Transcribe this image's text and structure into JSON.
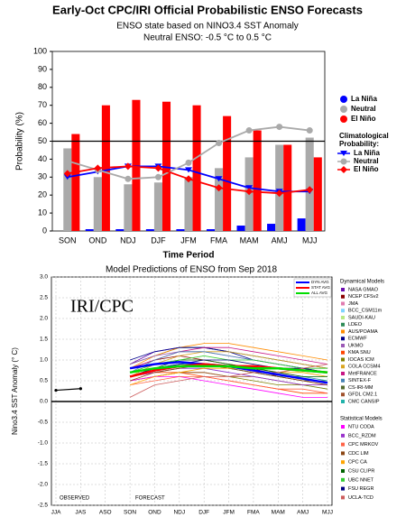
{
  "chart_data": [
    {
      "type": "bar",
      "title": "Early-Oct CPC/IRI Official Probabilistic ENSO Forecasts",
      "subtitle": [
        "ENSO state based on NINO3.4 SST Anomaly",
        "Neutral ENSO: -0.5 °C to 0.5 °C"
      ],
      "x_label": "Time Period",
      "y_label": "Probability (%)",
      "categories": [
        "SON",
        "OND",
        "NDJ",
        "DJF",
        "JFM",
        "FMA",
        "MAM",
        "AMJ",
        "MJJ"
      ],
      "ylim": [
        0,
        100
      ],
      "yticks": [
        0,
        10,
        20,
        30,
        40,
        50,
        60,
        70,
        80,
        90,
        100
      ],
      "reference_line": 50,
      "legend_title": "Climatological Probability:",
      "series": [
        {
          "name": "La Niña",
          "color": "#0000ff",
          "mark": "bar",
          "values": [
            0,
            1,
            1,
            1,
            1,
            1,
            3,
            4,
            7
          ]
        },
        {
          "name": "Neutral",
          "color": "#aaaaaa",
          "mark": "bar",
          "values": [
            46,
            30,
            26,
            27,
            30,
            35,
            41,
            48,
            52
          ]
        },
        {
          "name": "El Niño",
          "color": "#ff0000",
          "mark": "bar",
          "values": [
            54,
            70,
            73,
            72,
            70,
            64,
            56,
            48,
            41
          ]
        },
        {
          "name": "La Niña",
          "color": "#0000ff",
          "mark": "line",
          "marker": "triangle",
          "values": [
            30,
            33,
            36,
            36,
            34,
            29,
            24,
            22,
            22
          ]
        },
        {
          "name": "Neutral",
          "color": "#aaaaaa",
          "mark": "line",
          "marker": "circle",
          "values": [
            39,
            34,
            29,
            30,
            38,
            49,
            56,
            58,
            56
          ]
        },
        {
          "name": "El Niño",
          "color": "#ff0000",
          "mark": "line",
          "marker": "diamond",
          "values": [
            32,
            35,
            36,
            35,
            29,
            24,
            22,
            21,
            23
          ]
        }
      ]
    },
    {
      "type": "line",
      "title": "Model Predictions of ENSO from Sep 2018",
      "y_label": "Nino3.4 SST Anomaly (° C)",
      "annotations": [
        "IRI/CPC",
        "OBSERVED",
        "FORECAST"
      ],
      "categories": [
        "JJA",
        "JAS",
        "ASO",
        "SON",
        "OND",
        "NDJ",
        "DJF",
        "JFM",
        "FMA",
        "MAM",
        "AMJ",
        "MJJ"
      ],
      "ylim": [
        -2.5,
        3
      ],
      "yticks": [
        -2.5,
        {
          "value": -2,
          "label": "-2.0"
        },
        -1.5,
        {
          "value": -1,
          "label": "-1.0"
        },
        -0.5,
        {
          "value": 0,
          "label": "0.0"
        },
        0.5,
        {
          "value": 1,
          "label": "1.0"
        },
        1.5,
        {
          "value": 2,
          "label": "2.0"
        },
        2.5,
        {
          "value": 3,
          "label": "3.0"
        }
      ],
      "reference_line": 0,
      "grid": true,
      "observed": {
        "color": "#000000",
        "values": [
          0.27,
          0.31,
          null,
          null,
          null,
          null,
          null,
          null,
          null,
          null,
          null,
          null
        ]
      },
      "averages": [
        {
          "name": "DYN AVG",
          "color": "#0000ff",
          "values": [
            null,
            null,
            null,
            0.8,
            0.9,
            0.95,
            0.9,
            0.85,
            0.75,
            0.65,
            0.55,
            0.45
          ]
        },
        {
          "name": "STAT AVG",
          "color": "#ff0000",
          "values": [
            null,
            null,
            null,
            0.6,
            0.75,
            0.85,
            0.9,
            0.85,
            0.85,
            0.8,
            0.75,
            0.7
          ]
        },
        {
          "name": "ALL AVG",
          "color": "#00dd00",
          "values": [
            null,
            null,
            null,
            0.7,
            0.8,
            0.85,
            0.85,
            0.85,
            0.8,
            0.8,
            0.75,
            0.7
          ]
        }
      ],
      "model_groups": [
        {
          "title": "Dynamical Models",
          "series": [
            {
              "name": "NASA GMAO",
              "color": "#6a0dad",
              "values": [
                null,
                null,
                null,
                0.9,
                1.2,
                1.3,
                1.3,
                1.2,
                1.1,
                1.0,
                0.9,
                0.8
              ]
            },
            {
              "name": "NCEP CFSv2",
              "color": "#8b0000",
              "values": [
                null,
                null,
                null,
                0.8,
                1.0,
                1.1,
                1.0,
                0.9,
                0.8,
                0.6,
                0.5,
                0.4
              ]
            },
            {
              "name": "JMA",
              "color": "#e07bb0",
              "values": [
                null,
                null,
                null,
                0.7,
                0.9,
                1.0,
                1.0,
                0.9,
                0.8,
                0.7,
                0.6,
                0.5
              ]
            },
            {
              "name": "BCC_CSM11m",
              "color": "#7fd4ff",
              "values": [
                null,
                null,
                null,
                0.6,
                0.7,
                0.8,
                0.8,
                0.7,
                0.6,
                0.5,
                0.4,
                0.3
              ]
            },
            {
              "name": "SAUDI-KAU",
              "color": "#b8e986",
              "values": [
                null,
                null,
                null,
                0.7,
                0.9,
                1.0,
                1.1,
                1.0,
                0.9,
                0.8,
                0.7,
                0.6
              ]
            },
            {
              "name": "LDEO",
              "color": "#2e8b57",
              "values": [
                null,
                null,
                null,
                0.9,
                1.1,
                1.3,
                1.3,
                1.2,
                1.1,
                1.0,
                0.9,
                0.8
              ]
            },
            {
              "name": "AUS/POAMA",
              "color": "#ff8c00",
              "values": [
                null,
                null,
                null,
                0.8,
                1.1,
                1.3,
                1.4,
                1.4,
                1.3,
                1.2,
                1.1,
                1.0
              ]
            },
            {
              "name": "ECMWF",
              "color": "#00008b",
              "values": [
                null,
                null,
                null,
                1.0,
                1.2,
                1.3,
                1.3,
                1.2,
                1.0,
                0.9,
                0.8,
                0.7
              ]
            },
            {
              "name": "UKMO",
              "color": "#9b59b6",
              "values": [
                null,
                null,
                null,
                0.9,
                1.1,
                1.2,
                1.2,
                1.1,
                1.0,
                0.9,
                0.8,
                0.7
              ]
            },
            {
              "name": "KMA SNU",
              "color": "#ff4500",
              "values": [
                null,
                null,
                null,
                0.6,
                0.7,
                0.7,
                0.6,
                0.5,
                0.4,
                0.3,
                0.2,
                0.2
              ]
            },
            {
              "name": "IOCAS ICM",
              "color": "#808000",
              "values": [
                null,
                null,
                null,
                0.5,
                0.6,
                0.7,
                0.7,
                0.6,
                0.5,
                0.4,
                0.4,
                0.3
              ]
            },
            {
              "name": "COLA CCSM4",
              "color": "#daa520",
              "values": [
                null,
                null,
                null,
                0.6,
                0.9,
                1.1,
                1.2,
                1.2,
                1.1,
                1.0,
                0.9,
                0.8
              ]
            },
            {
              "name": "MetFRANCE",
              "color": "#c71585",
              "values": [
                null,
                null,
                null,
                0.8,
                1.0,
                1.2,
                1.3,
                1.3,
                1.2,
                1.1,
                1.0,
                0.9
              ]
            },
            {
              "name": "SINTEX-F",
              "color": "#4682b4",
              "values": [
                null,
                null,
                null,
                0.7,
                1.0,
                1.2,
                1.2,
                1.1,
                1.0,
                0.9,
                0.8,
                0.7
              ]
            },
            {
              "name": "CS-IRI-MM",
              "color": "#556b2f",
              "values": [
                null,
                null,
                null,
                0.6,
                0.8,
                0.9,
                0.9,
                0.8,
                0.7,
                0.6,
                0.5,
                0.5
              ]
            },
            {
              "name": "GFDL CM2.1",
              "color": "#a0522d",
              "values": [
                null,
                null,
                null,
                0.5,
                0.6,
                0.7,
                0.7,
                0.6,
                0.6,
                0.5,
                0.4,
                0.4
              ]
            },
            {
              "name": "CMC CANSIP",
              "color": "#20b2aa",
              "values": [
                null,
                null,
                null,
                0.7,
                0.8,
                0.9,
                0.9,
                0.8,
                0.7,
                0.6,
                0.6,
                0.5
              ]
            }
          ]
        },
        {
          "title": "Statistical Models",
          "series": [
            {
              "name": "NTU CODA",
              "color": "#ff00ff",
              "values": [
                null,
                null,
                null,
                0.5,
                0.6,
                0.6,
                0.5,
                0.4,
                0.3,
                0.2,
                0.1,
                0.1
              ]
            },
            {
              "name": "BCC_RZDM",
              "color": "#9932cc",
              "values": [
                null,
                null,
                null,
                0.6,
                0.7,
                0.8,
                0.8,
                0.7,
                0.6,
                0.5,
                0.4,
                0.4
              ]
            },
            {
              "name": "CPC MRKOV",
              "color": "#ff6347",
              "values": [
                null,
                null,
                null,
                0.4,
                0.5,
                0.6,
                0.6,
                0.5,
                0.4,
                0.3,
                0.3,
                0.2
              ]
            },
            {
              "name": "CDC LIM",
              "color": "#8b4513",
              "values": [
                null,
                null,
                null,
                0.5,
                0.7,
                0.8,
                0.9,
                0.8,
                0.7,
                0.6,
                0.5,
                0.4
              ]
            },
            {
              "name": "CPC CA",
              "color": "#ffa500",
              "values": [
                null,
                null,
                null,
                0.4,
                0.6,
                0.7,
                0.8,
                0.8,
                0.8,
                0.7,
                0.7,
                0.6
              ]
            },
            {
              "name": "CSU CLIPR",
              "color": "#006400",
              "values": [
                null,
                null,
                null,
                0.6,
                0.8,
                1.0,
                1.0,
                0.9,
                0.8,
                0.7,
                0.6,
                0.6
              ]
            },
            {
              "name": "UBC NNET",
              "color": "#32cd32",
              "values": [
                null,
                null,
                null,
                0.7,
                0.9,
                1.0,
                1.1,
                1.0,
                1.0,
                0.9,
                0.8,
                0.8
              ]
            },
            {
              "name": "FSU REGR",
              "color": "#000080",
              "values": [
                null,
                null,
                null,
                0.6,
                0.8,
                0.9,
                1.0,
                1.0,
                0.9,
                0.8,
                0.8,
                0.7
              ]
            },
            {
              "name": "UCLA-TCD",
              "color": "#cd5c5c",
              "values": [
                null,
                null,
                null,
                0.1,
                0.4,
                0.5,
                0.6,
                0.6,
                0.7,
                0.7,
                0.8,
                0.9
              ]
            }
          ]
        }
      ]
    }
  ]
}
